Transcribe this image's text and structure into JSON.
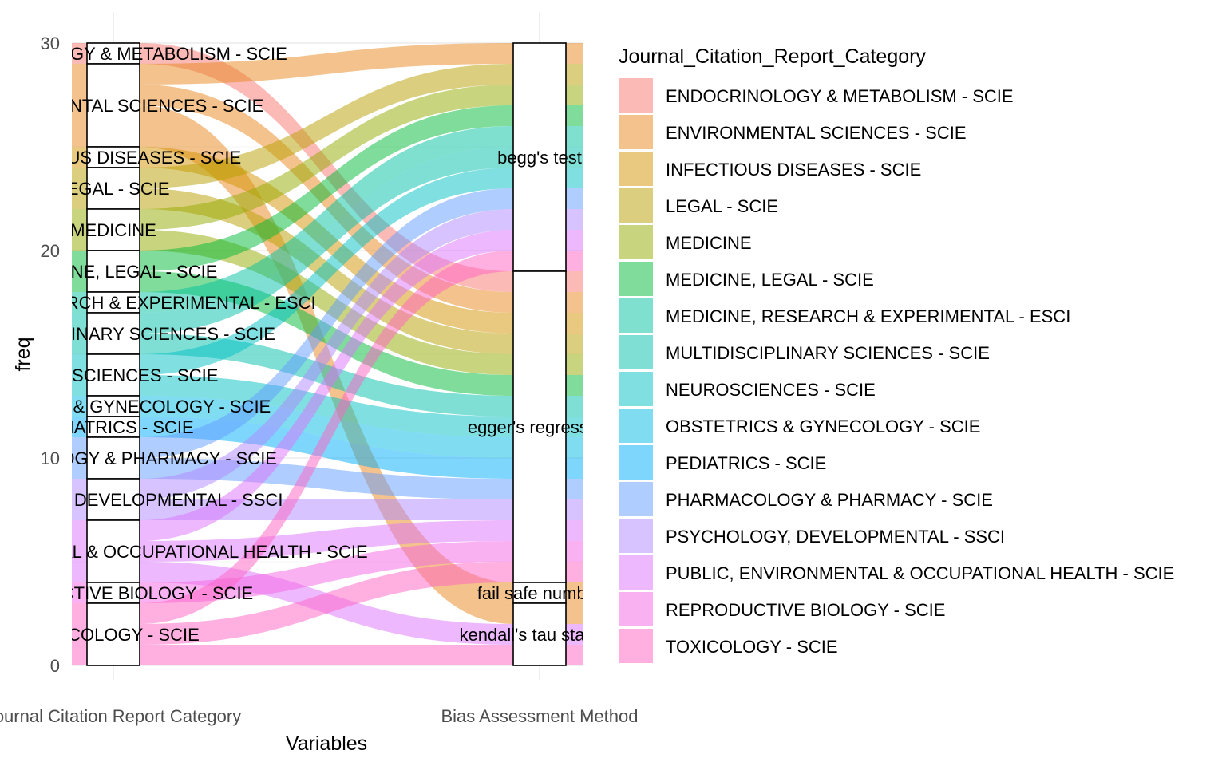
{
  "chart_data": {
    "type": "alluvial",
    "title": "",
    "xlabel": "Variables",
    "ylabel": "freq",
    "ylim": [
      0,
      30
    ],
    "yticks": [
      0,
      10,
      20,
      30
    ],
    "grid": true,
    "legend_position": "right",
    "legend_title": "Journal_Citation_Report_Category",
    "axes": [
      "Journal Citation Report Category",
      "Bias Assessment Method"
    ],
    "categories": [
      {
        "name": "ENDOCRINOLOGY & METABOLISM - SCIE",
        "color": "#F8766D"
      },
      {
        "name": "ENVIRONMENTAL SCIENCES - SCIE",
        "color": "#E7861B"
      },
      {
        "name": "INFECTIOUS DISEASES - SCIE",
        "color": "#D39200"
      },
      {
        "name": "LEGAL - SCIE",
        "color": "#B79F00"
      },
      {
        "name": "MEDICINE",
        "color": "#93AA00"
      },
      {
        "name": "MEDICINE, LEGAL - SCIE",
        "color": "#00BA38"
      },
      {
        "name": "MEDICINE, RESEARCH & EXPERIMENTAL - ESCI",
        "color": "#00C19F"
      },
      {
        "name": "MULTIDISCIPLINARY SCIENCES - SCIE",
        "color": "#00BFAB"
      },
      {
        "name": "NEUROSCIENCES - SCIE",
        "color": "#00BFC4"
      },
      {
        "name": "OBSTETRICS & GYNECOLOGY - SCIE",
        "color": "#00B9E3"
      },
      {
        "name": "PEDIATRICS - SCIE",
        "color": "#00ADFA"
      },
      {
        "name": "PHARMACOLOGY & PHARMACY - SCIE",
        "color": "#619CFF"
      },
      {
        "name": "PSYCHOLOGY, DEVELOPMENTAL - SSCI",
        "color": "#AE87FF"
      },
      {
        "name": "PUBLIC, ENVIRONMENTAL & OCCUPATIONAL HEALTH - SCIE",
        "color": "#DB72FB"
      },
      {
        "name": "REPRODUCTIVE BIOLOGY - SCIE",
        "color": "#F564E3"
      },
      {
        "name": "TOXICOLOGY - SCIE",
        "color": "#FF61C3"
      }
    ],
    "stratum_labels_left": [
      "ENDOCRINOLOGY & METABOLISM - SCIE",
      "ENVIRONMENTAL SCIENCES - SCIE",
      "INFECTIOUS DISEASES - SCIE",
      "LEGAL - SCIE",
      "MEDICINE",
      "MEDICINE, LEGAL - SCIE",
      "MEDICINE, RESEARCH & EXPERIMENTAL - ESCI",
      "MULTIDISCIPLINARY SCIENCES - SCIE",
      "NEUROSCIENCES - SCIE",
      "OBSTETRICS & GYNECOLOGY - SCIE",
      "PEDIATRICS - SCIE",
      "PHARMACOLOGY & PHARMACY - SCIE",
      "PSYCHOLOGY, DEVELOPMENTAL - SSCI",
      "PUBLIC, ENVIRONMENTAL & OCCUPATIONAL HEALTH - SCIE",
      "REPRODUCTIVE BIOLOGY - SCIE",
      "TOXICOLOGY - SCIE"
    ],
    "left_strata": [
      {
        "category": "ENDOCRINOLOGY & METABOLISM - SCIE",
        "freq": 1
      },
      {
        "category": "ENVIRONMENTAL SCIENCES - SCIE",
        "freq": 4
      },
      {
        "category": "INFECTIOUS DISEASES - SCIE",
        "freq": 1
      },
      {
        "category": "LEGAL - SCIE",
        "freq": 2
      },
      {
        "category": "MEDICINE",
        "freq": 2
      },
      {
        "category": "MEDICINE, LEGAL - SCIE",
        "freq": 2
      },
      {
        "category": "MEDICINE, RESEARCH & EXPERIMENTAL - ESCI",
        "freq": 1
      },
      {
        "category": "MULTIDISCIPLINARY SCIENCES - SCIE",
        "freq": 2
      },
      {
        "category": "NEUROSCIENCES - SCIE",
        "freq": 2
      },
      {
        "category": "OBSTETRICS & GYNECOLOGY - SCIE",
        "freq": 1
      },
      {
        "category": "PEDIATRICS - SCIE",
        "freq": 1
      },
      {
        "category": "PHARMACOLOGY & PHARMACY - SCIE",
        "freq": 2
      },
      {
        "category": "PSYCHOLOGY, DEVELOPMENTAL - SSCI",
        "freq": 2
      },
      {
        "category": "PUBLIC, ENVIRONMENTAL & OCCUPATIONAL HEALTH - SCIE",
        "freq": 3
      },
      {
        "category": "REPRODUCTIVE BIOLOGY - SCIE",
        "freq": 1
      },
      {
        "category": "TOXICOLOGY - SCIE",
        "freq": 3
      }
    ],
    "right_strata": [
      {
        "label": "begg's test",
        "freq": 11
      },
      {
        "label": "egger's regression",
        "freq": 15
      },
      {
        "label": "fail safe number",
        "freq": 1
      },
      {
        "label": "kendall's tau statistic",
        "freq": 3
      }
    ],
    "flows": [
      {
        "category": "ENDOCRINOLOGY & METABOLISM - SCIE",
        "to": "egger's regression",
        "freq": 1
      },
      {
        "category": "ENVIRONMENTAL SCIENCES - SCIE",
        "to": "begg's test",
        "freq": 1
      },
      {
        "category": "ENVIRONMENTAL SCIENCES - SCIE",
        "to": "egger's regression",
        "freq": 1
      },
      {
        "category": "ENVIRONMENTAL SCIENCES - SCIE",
        "to": "fail safe number",
        "freq": 1
      },
      {
        "category": "ENVIRONMENTAL SCIENCES - SCIE",
        "to": "kendall's tau statistic",
        "freq": 1
      },
      {
        "category": "INFECTIOUS DISEASES - SCIE",
        "to": "egger's regression",
        "freq": 1
      },
      {
        "category": "LEGAL - SCIE",
        "to": "begg's test",
        "freq": 1
      },
      {
        "category": "LEGAL - SCIE",
        "to": "egger's regression",
        "freq": 1
      },
      {
        "category": "MEDICINE",
        "to": "begg's test",
        "freq": 1
      },
      {
        "category": "MEDICINE",
        "to": "egger's regression",
        "freq": 1
      },
      {
        "category": "MEDICINE, LEGAL - SCIE",
        "to": "begg's test",
        "freq": 1
      },
      {
        "category": "MEDICINE, LEGAL - SCIE",
        "to": "egger's regression",
        "freq": 1
      },
      {
        "category": "MEDICINE, RESEARCH & EXPERIMENTAL - ESCI",
        "to": "begg's test",
        "freq": 1
      },
      {
        "category": "MULTIDISCIPLINARY SCIENCES - SCIE",
        "to": "begg's test",
        "freq": 1
      },
      {
        "category": "MULTIDISCIPLINARY SCIENCES - SCIE",
        "to": "egger's regression",
        "freq": 1
      },
      {
        "category": "NEUROSCIENCES - SCIE",
        "to": "begg's test",
        "freq": 1
      },
      {
        "category": "NEUROSCIENCES - SCIE",
        "to": "egger's regression",
        "freq": 1
      },
      {
        "category": "OBSTETRICS & GYNECOLOGY - SCIE",
        "to": "egger's regression",
        "freq": 1
      },
      {
        "category": "PEDIATRICS - SCIE",
        "to": "egger's regression",
        "freq": 1
      },
      {
        "category": "PHARMACOLOGY & PHARMACY - SCIE",
        "to": "begg's test",
        "freq": 1
      },
      {
        "category": "PHARMACOLOGY & PHARMACY - SCIE",
        "to": "egger's regression",
        "freq": 1
      },
      {
        "category": "PSYCHOLOGY, DEVELOPMENTAL - SSCI",
        "to": "begg's test",
        "freq": 1
      },
      {
        "category": "PSYCHOLOGY, DEVELOPMENTAL - SSCI",
        "to": "egger's regression",
        "freq": 1
      },
      {
        "category": "PUBLIC, ENVIRONMENTAL & OCCUPATIONAL HEALTH - SCIE",
        "to": "begg's test",
        "freq": 1
      },
      {
        "category": "PUBLIC, ENVIRONMENTAL & OCCUPATIONAL HEALTH - SCIE",
        "to": "egger's regression",
        "freq": 1
      },
      {
        "category": "PUBLIC, ENVIRONMENTAL & OCCUPATIONAL HEALTH - SCIE",
        "to": "kendall's tau statistic",
        "freq": 1
      },
      {
        "category": "REPRODUCTIVE BIOLOGY - SCIE",
        "to": "egger's regression",
        "freq": 1
      },
      {
        "category": "TOXICOLOGY - SCIE",
        "to": "begg's test",
        "freq": 1
      },
      {
        "category": "TOXICOLOGY - SCIE",
        "to": "egger's regression",
        "freq": 1
      },
      {
        "category": "TOXICOLOGY - SCIE",
        "to": "kendall's tau statistic",
        "freq": 1
      }
    ]
  }
}
